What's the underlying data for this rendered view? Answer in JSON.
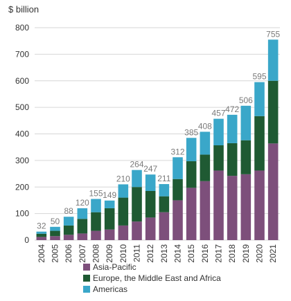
{
  "chart_data": {
    "type": "bar",
    "stacked": true,
    "unit_label": "$ billion",
    "ylim": [
      0,
      800
    ],
    "yticks": [
      0,
      100,
      200,
      300,
      400,
      500,
      600,
      700,
      800
    ],
    "grid": true,
    "legend_position": "bottom-left",
    "categories": [
      "2004",
      "2005",
      "2006",
      "2007",
      "2008",
      "2009",
      "2010",
      "2011",
      "2012",
      "2013",
      "2014",
      "2015",
      "2016",
      "2017",
      "2018",
      "2019",
      "2020",
      "2021"
    ],
    "totals": [
      32,
      50,
      88,
      120,
      155,
      149,
      210,
      264,
      247,
      211,
      312,
      385,
      408,
      457,
      472,
      506,
      595,
      755
    ],
    "series": [
      {
        "name": "Asia-Pacific",
        "color": "#7d4f7b",
        "values": [
          12,
          15,
          20,
          25,
          35,
          40,
          55,
          70,
          85,
          105,
          150,
          197,
          222,
          262,
          242,
          248,
          262,
          364
        ]
      },
      {
        "name": "Europe, the Middle East and Africa",
        "color": "#1f5a33",
        "values": [
          12,
          20,
          35,
          55,
          70,
          80,
          105,
          130,
          100,
          60,
          80,
          100,
          100,
          95,
          123,
          128,
          205,
          236
        ]
      },
      {
        "name": "Americas",
        "color": "#3aa7c9",
        "values": [
          8,
          15,
          33,
          40,
          50,
          29,
          50,
          64,
          62,
          46,
          82,
          88,
          86,
          100,
          107,
          130,
          128,
          155
        ]
      }
    ]
  }
}
